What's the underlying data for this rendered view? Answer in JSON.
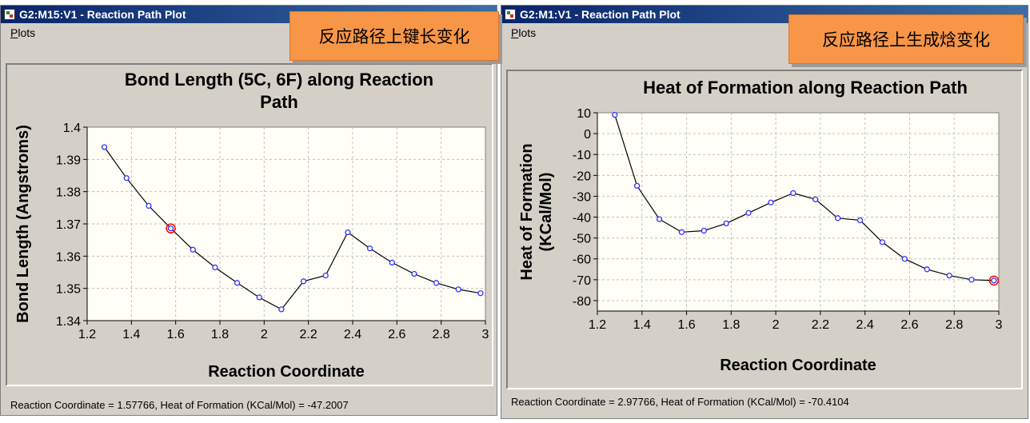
{
  "window1": {
    "title": "G2:M15:V1 - Reaction Path Plot",
    "menu": "Plots",
    "status": "Reaction Coordinate = 1.57766, Heat of Formation (KCal/Mol) = -47.2007",
    "callout": "反应路径上键长变化"
  },
  "window2": {
    "title": "G2:M1:V1 - Reaction Path Plot",
    "menu": "Plots",
    "status": "Reaction Coordinate = 2.97766, Heat of Formation (KCal/Mol) = -70.4104",
    "callout": "反应路径上生成焓变化"
  },
  "colors": {
    "line": "#000000",
    "point": "#3333ff",
    "selected": "#ff0000",
    "plot_bg": "#fffff8",
    "grid": "#c0c0c0"
  },
  "chart_data": [
    {
      "type": "line",
      "title": [
        "Bond Length (5C, 6F) along Reaction",
        "Path"
      ],
      "xlabel": "Reaction Coordinate",
      "ylabel": [
        "Bond Length (Angstroms)"
      ],
      "xlim": [
        1.2,
        3.0
      ],
      "ylim": [
        1.34,
        1.4
      ],
      "xticks": [
        "1.2",
        "1.4",
        "1.6",
        "1.8",
        "2",
        "2.2",
        "2.4",
        "2.6",
        "2.8",
        "3"
      ],
      "xtick_values": [
        1.2,
        1.4,
        1.6,
        1.8,
        2.0,
        2.2,
        2.4,
        2.6,
        2.8,
        3.0
      ],
      "yticks": [
        "1.34",
        "1.35",
        "1.36",
        "1.37",
        "1.38",
        "1.39",
        "1.4"
      ],
      "ytick_values": [
        1.34,
        1.35,
        1.36,
        1.37,
        1.38,
        1.39,
        1.4
      ],
      "grid": true,
      "x": [
        1.278,
        1.378,
        1.478,
        1.578,
        1.678,
        1.778,
        1.878,
        1.978,
        2.078,
        2.178,
        2.278,
        2.378,
        2.478,
        2.578,
        2.678,
        2.778,
        2.878,
        2.978
      ],
      "y": [
        1.3938,
        1.3842,
        1.3756,
        1.3686,
        1.362,
        1.3565,
        1.3517,
        1.3472,
        1.3435,
        1.3522,
        1.354,
        1.3674,
        1.3624,
        1.358,
        1.3545,
        1.3517,
        1.3497,
        1.3485
      ],
      "selected_index": 3
    },
    {
      "type": "line",
      "title": [
        "Heat of Formation along Reaction Path"
      ],
      "xlabel": "Reaction Coordinate",
      "ylabel": [
        "Heat of Formation",
        "(KCal/Mol)"
      ],
      "xlim": [
        1.2,
        3.0
      ],
      "ylim": [
        -85,
        10
      ],
      "xticks": [
        "1.2",
        "1.4",
        "1.6",
        "1.8",
        "2",
        "2.2",
        "2.4",
        "2.6",
        "2.8",
        "3"
      ],
      "xtick_values": [
        1.2,
        1.4,
        1.6,
        1.8,
        2.0,
        2.2,
        2.4,
        2.6,
        2.8,
        3.0
      ],
      "yticks": [
        "10",
        "0",
        "-10",
        "-20",
        "-30",
        "-40",
        "-50",
        "-60",
        "-70",
        "-80"
      ],
      "ytick_values": [
        10,
        0,
        -10,
        -20,
        -30,
        -40,
        -50,
        -60,
        -70,
        -80
      ],
      "grid": true,
      "x": [
        1.278,
        1.378,
        1.478,
        1.578,
        1.678,
        1.778,
        1.878,
        1.978,
        2.078,
        2.178,
        2.278,
        2.378,
        2.478,
        2.578,
        2.678,
        2.778,
        2.878,
        2.978
      ],
      "y": [
        9,
        -25,
        -41,
        -47.2,
        -46.5,
        -43,
        -38,
        -33,
        -28.5,
        -31.5,
        -40.5,
        -41.5,
        -52,
        -60,
        -65,
        -68,
        -70,
        -70.4
      ],
      "selected_index": 17
    }
  ]
}
